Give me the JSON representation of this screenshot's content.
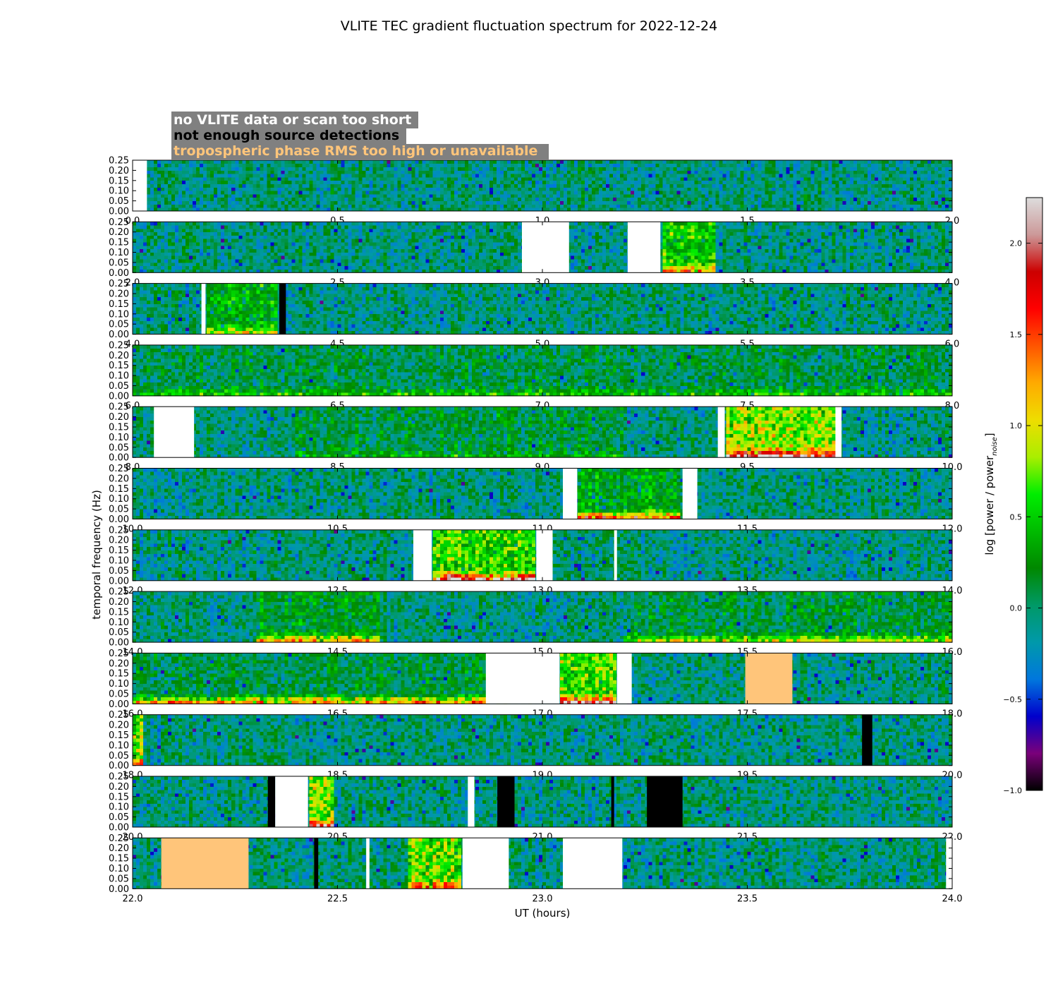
{
  "chart_data": {
    "type": "heatmap",
    "title": "VLITE TEC gradient fluctuation spectrum for 2022-12-24",
    "xlabel": "UT (hours)",
    "ylabel": "temporal frequency (Hz)",
    "colorbar": {
      "label_main": "log [power / power",
      "label_sub": "noise",
      "label_close": "]",
      "range": [
        -1.0,
        2.25
      ],
      "ticks": [
        "−1.0",
        "−0.5",
        "0.0",
        "0.5",
        "1.0",
        "1.5",
        "2.0"
      ],
      "tick_values": [
        -1.0,
        -0.5,
        0.0,
        0.5,
        1.0,
        1.5,
        2.0
      ],
      "colormap": [
        "#000000",
        "#7a007a",
        "#0000cc",
        "#0077dd",
        "#0099aa",
        "#009966",
        "#008800",
        "#00bb00",
        "#00ee00",
        "#aaee00",
        "#eedd00",
        "#ffaa00",
        "#ff5500",
        "#ff0000",
        "#cc0000",
        "#cc9999",
        "#dddddd"
      ]
    },
    "legend": [
      {
        "label": "no VLITE data or scan too short",
        "color": "#ffffff",
        "meaning": "no_data"
      },
      {
        "label": "not enough source detections",
        "color": "#000000",
        "meaning": "few_detections"
      },
      {
        "label": "tropospheric phase RMS too high or unavailable",
        "color": "#ffc57a",
        "meaning": "trop_rms"
      }
    ],
    "legend_bg": "#808080",
    "y_range": [
      0.0,
      0.25
    ],
    "y_ticks": [
      "0.25",
      "0.20",
      "0.15",
      "0.10",
      "0.05",
      "0.00"
    ],
    "panels": [
      {
        "x_ticks": [
          "0.0",
          "0.5",
          "1.0",
          "1.5",
          "2.0"
        ],
        "x_range": [
          0.0,
          2.0
        ],
        "masks": [
          {
            "type": "no_data",
            "start": 0.0,
            "end": 0.035
          }
        ],
        "activity": []
      },
      {
        "x_ticks": [
          "2.0",
          "2.5",
          "3.0",
          "3.5",
          "4.0"
        ],
        "x_range": [
          2.0,
          4.0
        ],
        "masks": [
          {
            "type": "no_data",
            "start": 2.95,
            "end": 3.065
          },
          {
            "type": "no_data",
            "start": 3.208,
            "end": 3.288
          }
        ],
        "activity": [
          {
            "start": 3.29,
            "end": 3.425,
            "level": 0.6,
            "low": 1.0
          }
        ]
      },
      {
        "x_ticks": [
          "4.0",
          "4.5",
          "5.0",
          "5.5",
          "6.0"
        ],
        "x_range": [
          4.0,
          6.0
        ],
        "masks": [
          {
            "type": "no_data",
            "start": 4.168,
            "end": 4.178
          },
          {
            "type": "few_detections",
            "start": 4.358,
            "end": 4.374
          }
        ],
        "activity": [
          {
            "start": 4.18,
            "end": 4.355,
            "level": 0.45,
            "low": 0.7
          }
        ]
      },
      {
        "x_ticks": [
          "6.0",
          "6.5",
          "7.0",
          "7.5",
          "8.0"
        ],
        "x_range": [
          6.0,
          8.0
        ],
        "masks": [],
        "activity": [
          {
            "start": 6.0,
            "end": 8.0,
            "level": 0.15,
            "low": 0.5
          }
        ]
      },
      {
        "x_ticks": [
          "8.0",
          "8.5",
          "9.0",
          "9.5",
          "10.0"
        ],
        "x_range": [
          8.0,
          10.0
        ],
        "masks": [
          {
            "type": "no_data",
            "start": 8.052,
            "end": 8.15
          },
          {
            "type": "no_data",
            "start": 9.428,
            "end": 9.445
          },
          {
            "type": "no_data",
            "start": 9.715,
            "end": 9.73
          }
        ],
        "activity": [
          {
            "start": 9.445,
            "end": 9.712,
            "level": 0.9,
            "low": 1.6
          },
          {
            "start": 8.4,
            "end": 9.2,
            "level": 0.2,
            "low": 0.3
          }
        ]
      },
      {
        "x_ticks": [
          "10.0",
          "10.5",
          "11.0",
          "11.5",
          "12.0"
        ],
        "x_range": [
          10.0,
          12.0
        ],
        "masks": [
          {
            "type": "no_data",
            "start": 11.05,
            "end": 11.085
          },
          {
            "type": "no_data",
            "start": 11.342,
            "end": 11.378
          }
        ],
        "activity": [
          {
            "start": 11.085,
            "end": 11.34,
            "level": 0.35,
            "low": 1.5
          }
        ]
      },
      {
        "x_ticks": [
          "12.0",
          "12.5",
          "13.0",
          "13.5",
          "14.0"
        ],
        "x_range": [
          12.0,
          14.0
        ],
        "masks": [
          {
            "type": "no_data",
            "start": 12.685,
            "end": 12.73
          },
          {
            "type": "no_data",
            "start": 12.985,
            "end": 13.025
          },
          {
            "type": "no_data",
            "start": 13.175,
            "end": 13.182
          }
        ],
        "activity": [
          {
            "start": 12.73,
            "end": 12.985,
            "level": 0.7,
            "low": 1.8
          }
        ]
      },
      {
        "x_ticks": [
          "14.0",
          "14.5",
          "15.0",
          "15.5",
          "16.0"
        ],
        "x_range": [
          14.0,
          16.0
        ],
        "masks": [],
        "activity": [
          {
            "start": 14.3,
            "end": 14.6,
            "level": 0.3,
            "low": 1.2
          },
          {
            "start": 15.2,
            "end": 16.0,
            "level": 0.2,
            "low": 0.9
          }
        ]
      },
      {
        "x_ticks": [
          "16.0",
          "16.5",
          "17.0",
          "17.5",
          "18.0"
        ],
        "x_range": [
          16.0,
          18.0
        ],
        "masks": [
          {
            "type": "no_data",
            "start": 16.862,
            "end": 17.042
          },
          {
            "type": "no_data",
            "start": 17.182,
            "end": 17.218
          },
          {
            "type": "trop_rms",
            "start": 17.495,
            "end": 17.61
          }
        ],
        "activity": [
          {
            "start": 16.0,
            "end": 16.862,
            "level": 0.15,
            "low": 1.4
          },
          {
            "start": 17.042,
            "end": 17.18,
            "level": 0.8,
            "low": 1.6
          }
        ]
      },
      {
        "x_ticks": [
          "18.0",
          "18.5",
          "19.0",
          "19.5",
          "20.0"
        ],
        "x_range": [
          18.0,
          20.0
        ],
        "masks": [
          {
            "type": "few_detections",
            "start": 19.78,
            "end": 19.805
          }
        ],
        "activity": [
          {
            "start": 18.0,
            "end": 18.03,
            "level": 0.9,
            "low": 0.9
          }
        ]
      },
      {
        "x_ticks": [
          "20.0",
          "20.5",
          "21.0",
          "21.5",
          "22.0"
        ],
        "x_range": [
          20.0,
          22.0
        ],
        "masks": [
          {
            "type": "few_detections",
            "start": 20.33,
            "end": 20.348
          },
          {
            "type": "no_data",
            "start": 20.348,
            "end": 20.428
          },
          {
            "type": "no_data",
            "start": 20.818,
            "end": 20.834
          },
          {
            "type": "few_detections",
            "start": 20.89,
            "end": 20.932
          },
          {
            "type": "few_detections",
            "start": 21.168,
            "end": 21.175
          },
          {
            "type": "few_detections",
            "start": 21.255,
            "end": 21.342
          }
        ],
        "activity": [
          {
            "start": 20.428,
            "end": 20.49,
            "level": 0.9,
            "low": 1.3
          }
        ]
      },
      {
        "x_ticks": [
          "22.0",
          "22.5",
          "23.0",
          "23.5",
          "24.0"
        ],
        "x_range": [
          22.0,
          24.0
        ],
        "masks": [
          {
            "type": "trop_rms",
            "start": 22.07,
            "end": 22.283
          },
          {
            "type": "few_detections",
            "start": 22.443,
            "end": 22.453
          },
          {
            "type": "no_data",
            "start": 22.57,
            "end": 22.578
          },
          {
            "type": "no_data",
            "start": 22.805,
            "end": 22.918
          },
          {
            "type": "no_data",
            "start": 23.05,
            "end": 23.195
          },
          {
            "type": "no_data",
            "start": 23.985,
            "end": 24.0
          }
        ],
        "activity": [
          {
            "start": 22.675,
            "end": 22.8,
            "level": 0.8,
            "low": 0.9
          }
        ]
      }
    ]
  }
}
